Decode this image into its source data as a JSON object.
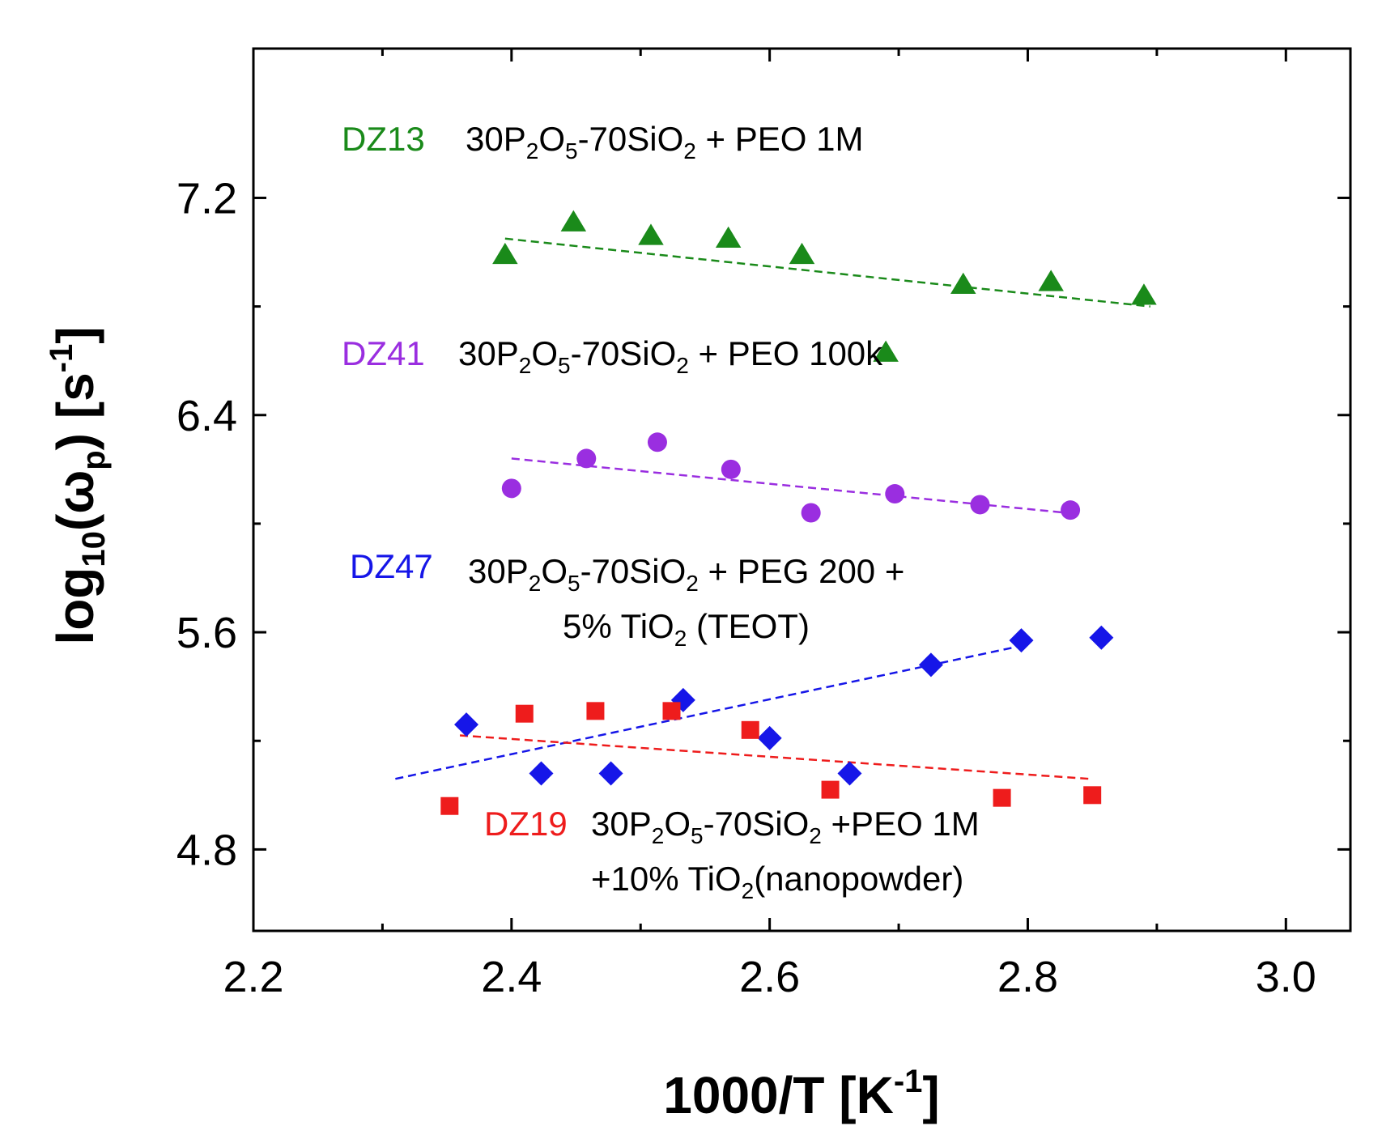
{
  "chart_data": {
    "type": "scatter",
    "title": "",
    "xlabel": "1000/T [K-1]",
    "ylabel": "log10(ωp) [s-1]",
    "xlim": [
      2.2,
      3.05
    ],
    "ylim": [
      4.5,
      7.75
    ],
    "xticks": [
      2.2,
      2.4,
      2.6,
      2.8,
      3.0
    ],
    "xtick_labels": [
      "2.2",
      "2.4",
      "2.6",
      "2.8",
      "3.0"
    ],
    "yticks": [
      4.8,
      5.6,
      6.4,
      7.2
    ],
    "ytick_labels": [
      "4.8",
      "5.6",
      "6.4",
      "7.2"
    ],
    "grid": false,
    "series": [
      {
        "name": "DZ13",
        "label": "DZ13",
        "color": "#1a8a1a",
        "marker": "triangle",
        "x": [
          2.395,
          2.448,
          2.508,
          2.568,
          2.625,
          2.69,
          2.75,
          2.818,
          2.89
        ],
        "y": [
          6.99,
          7.11,
          7.06,
          7.05,
          6.99,
          6.63,
          6.88,
          6.89,
          6.84
        ],
        "fit": {
          "x": [
            2.395,
            2.895
          ],
          "y": [
            7.05,
            6.8
          ]
        },
        "desc": {
          "prefix": "30P",
          "s1": "2",
          "mid1": "O",
          "s2": "5",
          "mid2": "-70SiO",
          "s3": "2",
          "suffix": " + PEO 1M"
        }
      },
      {
        "name": "DZ41",
        "label": "DZ41",
        "color": "#9a2ee0",
        "marker": "circle",
        "x": [
          2.4,
          2.458,
          2.513,
          2.57,
          2.632,
          2.697,
          2.763,
          2.833
        ],
        "y": [
          6.13,
          6.24,
          6.3,
          6.2,
          6.04,
          6.11,
          6.07,
          6.05
        ],
        "fit": {
          "x": [
            2.4,
            2.83
          ],
          "y": [
            6.24,
            6.04
          ]
        },
        "desc": {
          "prefix": "30P",
          "s1": "2",
          "mid1": "O",
          "s2": "5",
          "mid2": "-70SiO",
          "s3": "2",
          "suffix": " + PEO 100k"
        }
      },
      {
        "name": "DZ47",
        "label": "DZ47",
        "color": "#1616e8",
        "marker": "diamond",
        "x": [
          2.365,
          2.423,
          2.477,
          2.533,
          2.6,
          2.662,
          2.725,
          2.795,
          2.857
        ],
        "y": [
          5.26,
          5.08,
          5.08,
          5.35,
          5.21,
          5.08,
          5.48,
          5.57,
          5.58
        ],
        "fit": {
          "x": [
            2.31,
            2.795
          ],
          "y": [
            5.06,
            5.55
          ]
        },
        "desc": {
          "prefix": "30P",
          "s1": "2",
          "mid1": "O",
          "s2": "5",
          "mid2": "-70SiO",
          "s3": "2",
          "suffix": " + PEG 200 +"
        },
        "desc2": {
          "prefix": "5% TiO",
          "s1": "2",
          "suffix": " (TEOT)"
        }
      },
      {
        "name": "DZ19",
        "label": "DZ19",
        "color": "#ee1c1c",
        "marker": "square",
        "x": [
          2.352,
          2.41,
          2.465,
          2.524,
          2.585,
          2.647,
          2.78,
          2.85
        ],
        "y": [
          4.96,
          5.3,
          5.31,
          5.31,
          5.24,
          5.02,
          4.99,
          5.0
        ],
        "fit": {
          "x": [
            2.36,
            2.848
          ],
          "y": [
            5.22,
            5.06
          ]
        },
        "desc": {
          "prefix": "30P",
          "s1": "2",
          "mid1": "O",
          "s2": "5",
          "mid2": "-70SiO",
          "s3": "2",
          "suffix": " +PEO 1M"
        },
        "desc2": {
          "prefix": "+10% TiO",
          "s1": "2",
          "suffix": "(nanopowder)"
        }
      }
    ]
  }
}
